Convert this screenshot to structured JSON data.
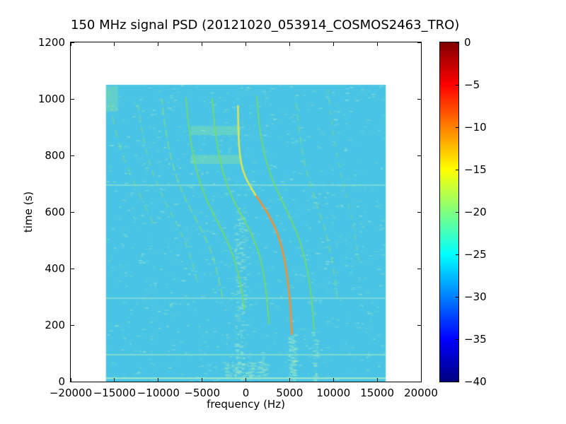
{
  "chart_data": {
    "type": "heatmap",
    "title": "150 MHz signal PSD (20121020_053914_COSMOS2463_TRO)",
    "xlabel": "frequency (Hz)",
    "ylabel": "time (s)",
    "xlim": [
      -20000,
      20000
    ],
    "ylim": [
      0,
      1200
    ],
    "grid": false,
    "legend": "none",
    "xticks": [
      -20000,
      -15000,
      -10000,
      -5000,
      0,
      5000,
      10000,
      15000,
      20000
    ],
    "xtick_labels": [
      "−20000",
      "−15000",
      "−10000",
      "−5000",
      "0",
      "5000",
      "10000",
      "15000",
      "20000"
    ],
    "yticks": [
      0,
      200,
      400,
      600,
      800,
      1000,
      1200
    ],
    "ytick_labels": [
      "0",
      "200",
      "400",
      "600",
      "800",
      "1000",
      "1200"
    ],
    "data_extent": {
      "f": [
        -16000,
        16000
      ],
      "t": [
        0,
        1050
      ]
    },
    "background": {
      "value_db": -28,
      "color": "#4ac4e4"
    },
    "colorbar": {
      "vmin": -40,
      "vmax": 0,
      "ticks": [
        0,
        -5,
        -10,
        -15,
        -20,
        -25,
        -30,
        -35,
        -40
      ],
      "tick_labels": [
        "0",
        "−5",
        "−10",
        "−15",
        "−20",
        "−25",
        "−30",
        "−35",
        "−40"
      ],
      "colormap": "jet",
      "stops": [
        {
          "pos": 0.0,
          "color": "#000080"
        },
        {
          "pos": 0.125,
          "color": "#0000ff"
        },
        {
          "pos": 0.375,
          "color": "#00ffff"
        },
        {
          "pos": 0.625,
          "color": "#ffff00"
        },
        {
          "pos": 0.875,
          "color": "#ff0000"
        },
        {
          "pos": 1.0,
          "color": "#800000"
        }
      ]
    },
    "traces": [
      {
        "name": "doppler-main-lower",
        "color": "#ff8c28",
        "width": 2.5,
        "alpha": 0.95,
        "points_time_freq": [
          [
            168,
            5250
          ],
          [
            240,
            5150
          ],
          [
            330,
            4900
          ],
          [
            430,
            4450
          ],
          [
            510,
            3800
          ],
          [
            575,
            2900
          ],
          [
            625,
            1900
          ],
          [
            660,
            1100
          ]
        ]
      },
      {
        "name": "doppler-main-upper",
        "color": "#e6e84e",
        "width": 2.5,
        "alpha": 0.95,
        "points_time_freq": [
          [
            660,
            1100
          ],
          [
            700,
            300
          ],
          [
            745,
            -350
          ],
          [
            800,
            -700
          ],
          [
            870,
            -850
          ],
          [
            975,
            -900
          ]
        ]
      },
      {
        "name": "doppler-left-1",
        "color": "#74dc6a",
        "width": 2,
        "alpha": 0.9,
        "points_time_freq": [
          [
            205,
            2650
          ],
          [
            300,
            2400
          ],
          [
            400,
            1950
          ],
          [
            480,
            1250
          ],
          [
            545,
            300
          ],
          [
            610,
            -900
          ],
          [
            680,
            -2000
          ],
          [
            770,
            -2900
          ],
          [
            880,
            -3500
          ],
          [
            1000,
            -3850
          ]
        ]
      },
      {
        "name": "doppler-left-2",
        "color": "#74dc6a",
        "width": 2,
        "alpha": 0.85,
        "points_time_freq": [
          [
            255,
            -150
          ],
          [
            350,
            -600
          ],
          [
            440,
            -1350
          ],
          [
            520,
            -2450
          ],
          [
            595,
            -3750
          ],
          [
            675,
            -4950
          ],
          [
            770,
            -5850
          ],
          [
            880,
            -6450
          ],
          [
            1005,
            -6850
          ]
        ]
      },
      {
        "name": "doppler-left-3",
        "color": "#7fdc8c",
        "width": 2,
        "alpha": 0.7,
        "dash": [
          10,
          6
        ],
        "points_time_freq": [
          [
            300,
            -2700
          ],
          [
            400,
            -3300
          ],
          [
            485,
            -4250
          ],
          [
            565,
            -5550
          ],
          [
            650,
            -7000
          ],
          [
            750,
            -8250
          ],
          [
            870,
            -9100
          ],
          [
            1000,
            -9600
          ]
        ]
      },
      {
        "name": "doppler-left-4",
        "color": "#7fdc8c",
        "width": 2,
        "alpha": 0.55,
        "dash": [
          7,
          9
        ],
        "points_time_freq": [
          [
            360,
            -5600
          ],
          [
            455,
            -6400
          ],
          [
            545,
            -7650
          ],
          [
            635,
            -9200
          ],
          [
            735,
            -10650
          ],
          [
            855,
            -11700
          ],
          [
            985,
            -12350
          ]
        ]
      },
      {
        "name": "doppler-left-5",
        "color": "#7fdc8c",
        "width": 2,
        "alpha": 0.5,
        "dash": [
          9,
          10
        ],
        "points_time_freq": [
          [
            560,
            -10600
          ],
          [
            660,
            -12100
          ],
          [
            760,
            -13600
          ],
          [
            860,
            -14700
          ],
          [
            960,
            -15400
          ],
          [
            1045,
            -15750
          ]
        ]
      },
      {
        "name": "doppler-right-1",
        "color": "#74dc6a",
        "width": 2,
        "alpha": 0.85,
        "points_time_freq": [
          [
            185,
            7800
          ],
          [
            290,
            7550
          ],
          [
            395,
            7050
          ],
          [
            495,
            6250
          ],
          [
            575,
            5150
          ],
          [
            655,
            3900
          ],
          [
            730,
            2800
          ],
          [
            815,
            2000
          ],
          [
            910,
            1500
          ],
          [
            1010,
            1250
          ]
        ]
      },
      {
        "name": "doppler-right-2",
        "color": "#7fdc8c",
        "width": 2,
        "alpha": 0.6,
        "dash": [
          8,
          8
        ],
        "points_time_freq": [
          [
            300,
            10450
          ],
          [
            420,
            9950
          ],
          [
            535,
            9100
          ],
          [
            640,
            7950
          ],
          [
            745,
            6900
          ],
          [
            865,
            6150
          ],
          [
            990,
            5750
          ]
        ]
      },
      {
        "name": "doppler-right-3",
        "color": "#7fdc8c",
        "width": 2,
        "alpha": 0.45,
        "dash": [
          5,
          10
        ],
        "points_time_freq": [
          [
            430,
            12900
          ],
          [
            560,
            12250
          ],
          [
            680,
            11300
          ],
          [
            800,
            10400
          ],
          [
            925,
            9750
          ],
          [
            1040,
            9400
          ]
        ]
      }
    ],
    "horizontal_lines": [
      {
        "t": 12,
        "color": "#aef0c8",
        "width": 2,
        "alpha": 0.9
      },
      {
        "t": 95,
        "color": "#a0ecc4",
        "width": 1.5,
        "alpha": 0.8
      },
      {
        "t": 295,
        "color": "#a0ecc4",
        "width": 1.5,
        "alpha": 0.7
      },
      {
        "t": 695,
        "color": "#a0ecc4",
        "width": 1.5,
        "alpha": 0.7
      }
    ],
    "bands": [
      {
        "t": [
          770,
          802
        ],
        "f": [
          -6300,
          -600
        ],
        "color": "#8ce6a0",
        "alpha": 0.4
      },
      {
        "t": [
          872,
          904
        ],
        "f": [
          -6300,
          -600
        ],
        "color": "#8ce6a0",
        "alpha": 0.4
      },
      {
        "t": [
          955,
          1045
        ],
        "f": [
          -16000,
          -14600
        ],
        "color": "#8ce6a0",
        "alpha": 0.35
      }
    ],
    "noise": {
      "seed": 20121020,
      "count": 1000,
      "color": "#8fe4d4",
      "max_alpha": 0.55,
      "columns": [
        {
          "f": [
            -1300,
            -100
          ],
          "t": [
            0,
            620
          ],
          "count": 220,
          "color": "#9ae8c6"
        },
        {
          "f": [
            4800,
            5600
          ],
          "t": [
            0,
            170
          ],
          "count": 120,
          "color": "#9ae8c6"
        },
        {
          "f": [
            7500,
            8100
          ],
          "t": [
            0,
            190
          ],
          "count": 60,
          "color": "#9ae8c6"
        },
        {
          "f": [
            -2500,
            2500
          ],
          "t": [
            10,
            70
          ],
          "count": 180,
          "color": "#9ae8c6"
        }
      ]
    }
  }
}
